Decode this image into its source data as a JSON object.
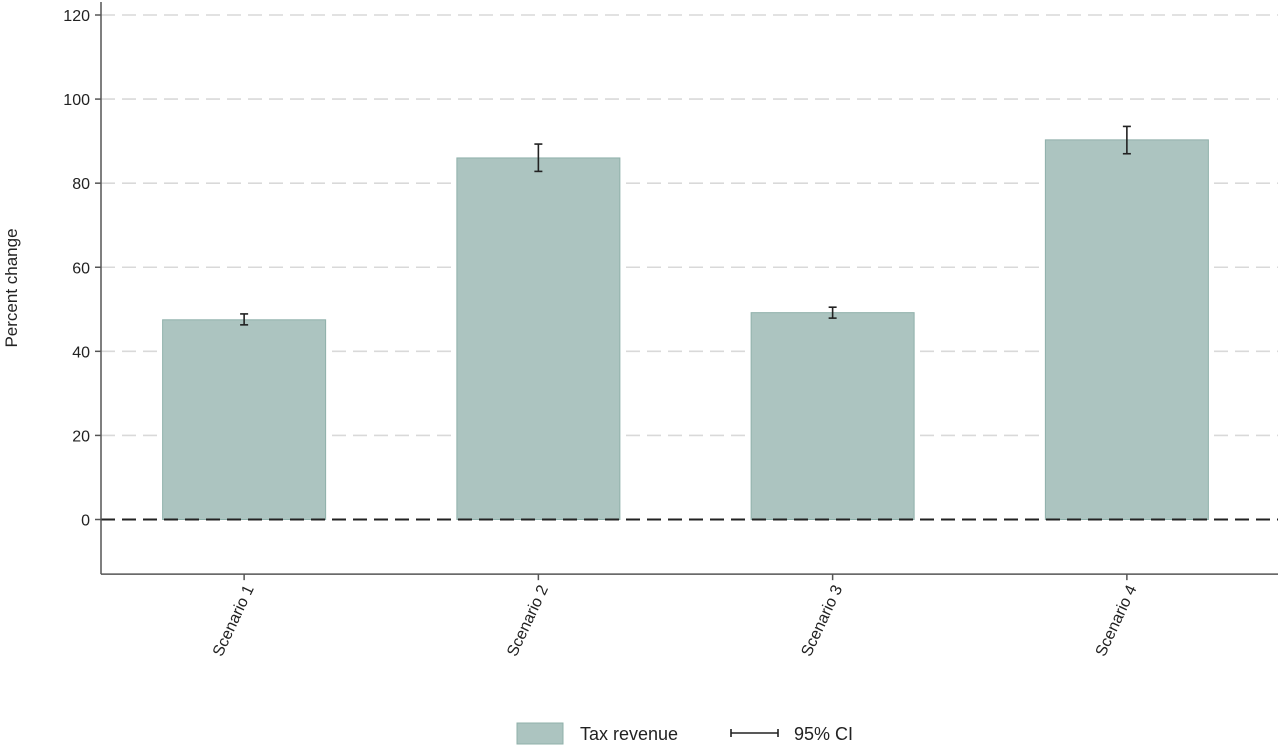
{
  "chart_data": {
    "type": "bar",
    "categories": [
      "Scenario 1",
      "Scenario 2",
      "Scenario 3",
      "Scenario 4"
    ],
    "series": [
      {
        "name": "Tax revenue",
        "values": [
          47.5,
          86.0,
          49.2,
          90.3
        ],
        "ci_low": [
          46.3,
          82.8,
          47.9,
          87.0
        ],
        "ci_high": [
          48.9,
          89.3,
          50.5,
          93.5
        ]
      }
    ],
    "title": "",
    "xlabel": "",
    "ylabel": "Percent change",
    "ylim": [
      -13,
      123
    ],
    "yticks": [
      0,
      20,
      40,
      60,
      80,
      100,
      120
    ],
    "grid": "horizontal dashed",
    "reference_line": 0,
    "legend": {
      "position": "bottom",
      "items": [
        "Tax revenue",
        "95% CI"
      ]
    },
    "colors": {
      "bar": "#acc4c0",
      "bar_edge": "#8fb0aa",
      "ci": "#222222",
      "grid": "#d9d9d9",
      "axis": "#555555"
    }
  }
}
